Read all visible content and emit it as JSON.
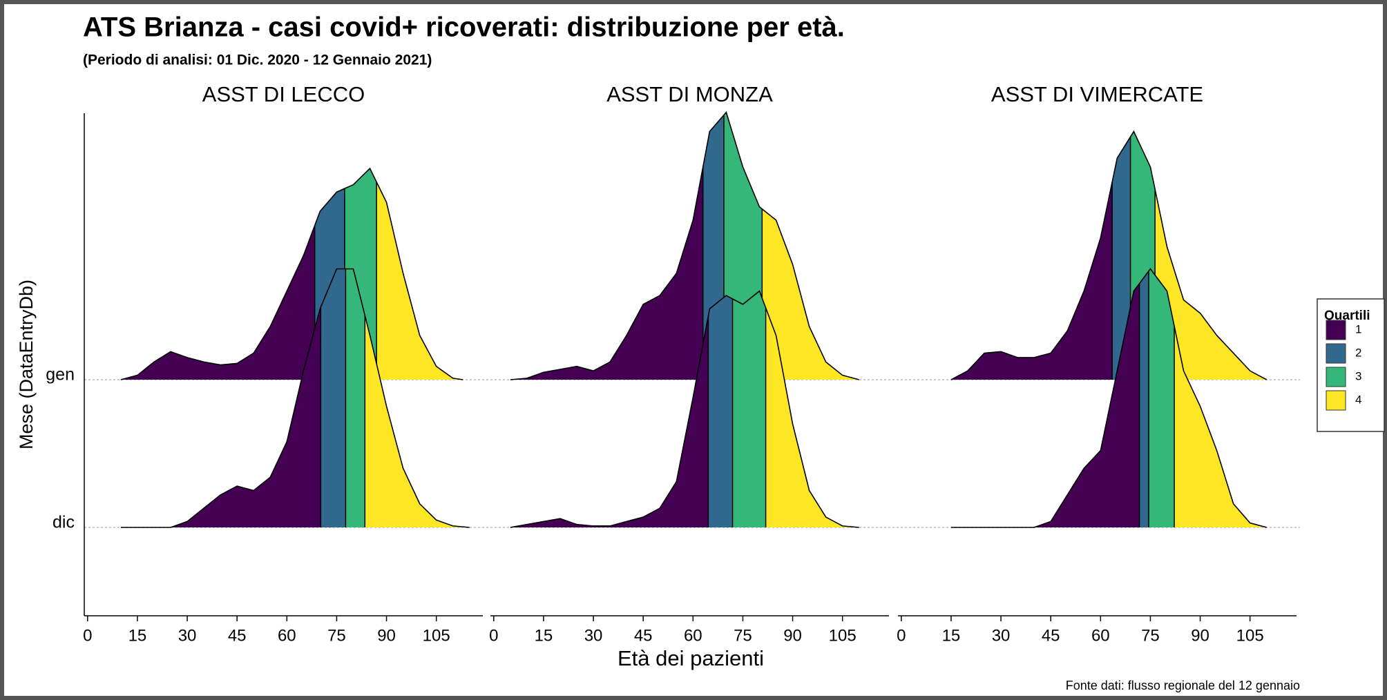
{
  "chart_data": {
    "type": "ridgeline",
    "title": "ATS Brianza - casi covid+ ricoverati: distribuzione per età.",
    "subtitle": "(Periodo di analisi: 01 Dic. 2020 - 12 Gennaio 2021)",
    "x_label": "Età dei pazienti",
    "y_label": "Mese (DataEntryDb)",
    "source": "Fonte dati: flusso regionale del 12 gennaio",
    "y_categories": [
      "dic",
      "gen"
    ],
    "xlim": [
      -1,
      119
    ],
    "xticks": [
      0,
      15,
      30,
      45,
      60,
      75,
      90,
      105
    ],
    "legend": {
      "title": "Quartili",
      "entries": [
        {
          "label": "1",
          "color": "#440154"
        },
        {
          "label": "2",
          "color": "#31688e"
        },
        {
          "label": "3",
          "color": "#35b779"
        },
        {
          "label": "4",
          "color": "#fde725"
        }
      ]
    },
    "panels": [
      {
        "title": "ASST DI LECCO",
        "series": [
          {
            "x": [
              10,
              15,
              20,
              25,
              30,
              35,
              40,
              45,
              50,
              55,
              60,
              65,
              70,
              75,
              80,
              85,
              90,
              95,
              100,
              105,
              110,
              115
            ],
            "values": [
              0,
              0,
              0,
              0,
              0.04,
              0.13,
              0.22,
              0.28,
              0.25,
              0.34,
              0.58,
              1.06,
              1.48,
              1.75,
              1.75,
              1.3,
              0.82,
              0.4,
              0.16,
              0.05,
              0.01,
              0
            ],
            "quartiles": [
              70.2,
              77.7,
              83.5
            ]
          },
          {
            "x": [
              10,
              15,
              20,
              25,
              30,
              35,
              40,
              45,
              50,
              55,
              60,
              65,
              70,
              75,
              80,
              85,
              90,
              95,
              100,
              105,
              110,
              113
            ],
            "values": [
              0,
              0.03,
              0.12,
              0.19,
              0.15,
              0.12,
              0.1,
              0.11,
              0.18,
              0.36,
              0.6,
              0.84,
              1.14,
              1.27,
              1.32,
              1.43,
              1.2,
              0.72,
              0.3,
              0.09,
              0.01,
              0
            ],
            "quartiles": [
              68.4,
              77.4,
              87
            ]
          }
        ]
      },
      {
        "title": "ASST DI MONZA",
        "series": [
          {
            "x": [
              5,
              10,
              15,
              20,
              25,
              30,
              35,
              40,
              45,
              50,
              55,
              60,
              65,
              70,
              75,
              80,
              85,
              90,
              95,
              100,
              105,
              110
            ],
            "values": [
              0,
              0.02,
              0.04,
              0.06,
              0.02,
              0.01,
              0.01,
              0.04,
              0.07,
              0.13,
              0.31,
              0.88,
              1.48,
              1.57,
              1.51,
              1.6,
              1.3,
              0.7,
              0.25,
              0.07,
              0.01,
              0
            ],
            "quartiles": [
              64.6,
              71.9,
              81.9
            ]
          },
          {
            "x": [
              5,
              10,
              15,
              20,
              25,
              30,
              35,
              40,
              45,
              50,
              55,
              60,
              65,
              70,
              75,
              80,
              85,
              90,
              95,
              100,
              105,
              110
            ],
            "values": [
              0,
              0.01,
              0.05,
              0.07,
              0.09,
              0.06,
              0.12,
              0.3,
              0.51,
              0.57,
              0.72,
              1.08,
              1.68,
              1.81,
              1.44,
              1.17,
              1.08,
              0.78,
              0.36,
              0.12,
              0.03,
              0
            ],
            "quartiles": [
              63,
              69.3,
              80.8
            ]
          }
        ]
      },
      {
        "title": "ASST DI VIMERCATE",
        "series": [
          {
            "x": [
              15,
              20,
              25,
              30,
              35,
              40,
              45,
              50,
              55,
              60,
              65,
              70,
              75,
              80,
              85,
              90,
              95,
              100,
              105,
              110
            ],
            "values": [
              0,
              0,
              0,
              0,
              0,
              0,
              0.04,
              0.22,
              0.4,
              0.52,
              1.06,
              1.6,
              1.75,
              1.6,
              1.06,
              0.82,
              0.52,
              0.16,
              0.03,
              0
            ],
            "quartiles": [
              71.7,
              74.5,
              82.2
            ]
          },
          {
            "x": [
              15,
              20,
              25,
              30,
              35,
              40,
              45,
              50,
              55,
              60,
              65,
              70,
              75,
              80,
              85,
              90,
              95,
              100,
              105,
              110
            ],
            "values": [
              0,
              0.06,
              0.18,
              0.19,
              0.15,
              0.15,
              0.18,
              0.33,
              0.6,
              0.96,
              1.5,
              1.68,
              1.44,
              0.9,
              0.54,
              0.45,
              0.3,
              0.18,
              0.06,
              0
            ],
            "quartiles": [
              63.5,
              69,
              76.4
            ]
          }
        ]
      }
    ]
  }
}
